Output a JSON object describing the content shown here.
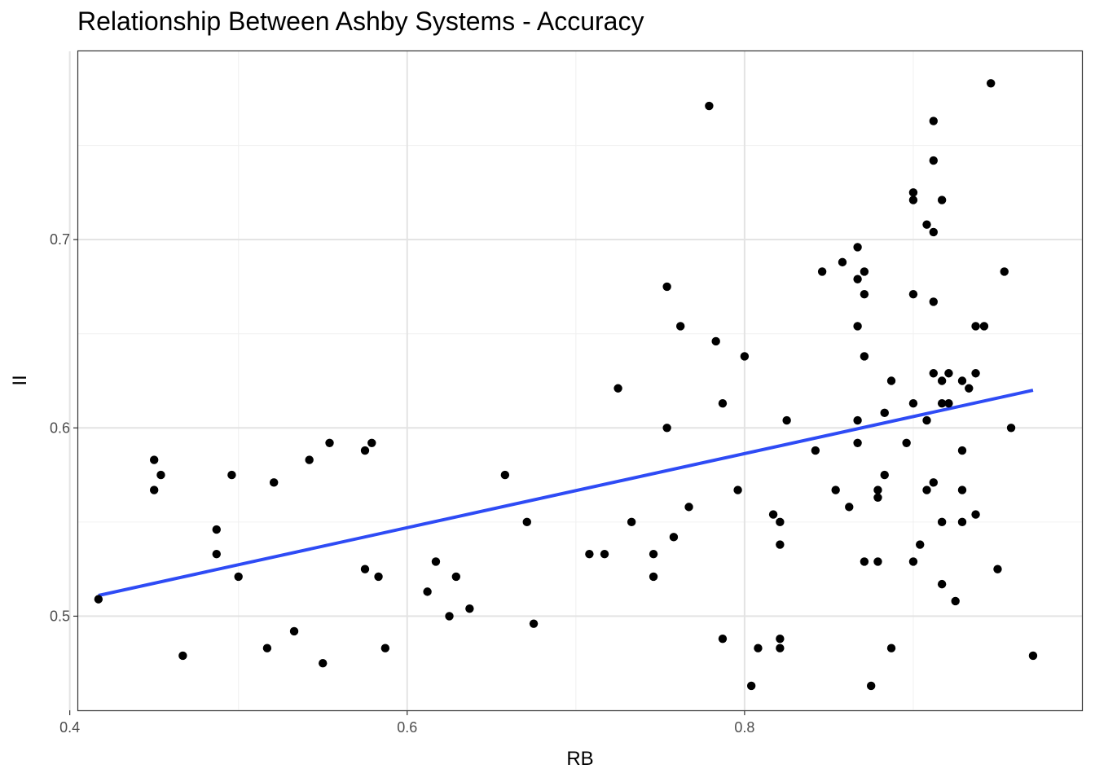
{
  "chart_data": {
    "type": "scatter",
    "title": "Relationship Between Ashby Systems - Accuracy",
    "xlabel": "RB",
    "ylabel": "II",
    "xlim": [
      0.405,
      1.0
    ],
    "ylim": [
      0.45,
      0.8
    ],
    "x_ticks": [
      0.4,
      0.6,
      0.8
    ],
    "x_tick_labels": [
      "0.4",
      "0.6",
      "0.8"
    ],
    "y_ticks": [
      0.5,
      0.6,
      0.7
    ],
    "y_tick_labels": [
      "0.5",
      "0.6",
      "0.7"
    ],
    "grid": true,
    "point_color": "#000000",
    "line_color": "#2E4BF5",
    "fit_line": {
      "x": [
        0.417,
        0.971
      ],
      "y": [
        0.511,
        0.62
      ]
    },
    "points": [
      [
        0.417,
        0.509
      ],
      [
        0.45,
        0.583
      ],
      [
        0.45,
        0.567
      ],
      [
        0.454,
        0.575
      ],
      [
        0.467,
        0.479
      ],
      [
        0.487,
        0.546
      ],
      [
        0.487,
        0.533
      ],
      [
        0.496,
        0.575
      ],
      [
        0.5,
        0.521
      ],
      [
        0.517,
        0.483
      ],
      [
        0.521,
        0.571
      ],
      [
        0.533,
        0.492
      ],
      [
        0.542,
        0.583
      ],
      [
        0.55,
        0.475
      ],
      [
        0.554,
        0.592
      ],
      [
        0.575,
        0.588
      ],
      [
        0.575,
        0.525
      ],
      [
        0.579,
        0.592
      ],
      [
        0.583,
        0.521
      ],
      [
        0.587,
        0.483
      ],
      [
        0.612,
        0.513
      ],
      [
        0.617,
        0.529
      ],
      [
        0.625,
        0.5
      ],
      [
        0.629,
        0.521
      ],
      [
        0.637,
        0.504
      ],
      [
        0.658,
        0.575
      ],
      [
        0.671,
        0.55
      ],
      [
        0.675,
        0.496
      ],
      [
        0.708,
        0.533
      ],
      [
        0.717,
        0.533
      ],
      [
        0.725,
        0.621
      ],
      [
        0.733,
        0.55
      ],
      [
        0.746,
        0.533
      ],
      [
        0.746,
        0.521
      ],
      [
        0.754,
        0.675
      ],
      [
        0.754,
        0.6
      ],
      [
        0.758,
        0.542
      ],
      [
        0.762,
        0.654
      ],
      [
        0.767,
        0.558
      ],
      [
        0.779,
        0.771
      ],
      [
        0.783,
        0.646
      ],
      [
        0.787,
        0.613
      ],
      [
        0.787,
        0.488
      ],
      [
        0.796,
        0.567
      ],
      [
        0.8,
        0.638
      ],
      [
        0.804,
        0.463
      ],
      [
        0.808,
        0.483
      ],
      [
        0.817,
        0.554
      ],
      [
        0.821,
        0.55
      ],
      [
        0.821,
        0.538
      ],
      [
        0.821,
        0.488
      ],
      [
        0.821,
        0.483
      ],
      [
        0.825,
        0.604
      ],
      [
        0.842,
        0.588
      ],
      [
        0.846,
        0.683
      ],
      [
        0.854,
        0.567
      ],
      [
        0.858,
        0.688
      ],
      [
        0.862,
        0.558
      ],
      [
        0.867,
        0.696
      ],
      [
        0.867,
        0.679
      ],
      [
        0.867,
        0.654
      ],
      [
        0.867,
        0.604
      ],
      [
        0.867,
        0.592
      ],
      [
        0.871,
        0.683
      ],
      [
        0.871,
        0.671
      ],
      [
        0.871,
        0.638
      ],
      [
        0.871,
        0.529
      ],
      [
        0.875,
        0.463
      ],
      [
        0.879,
        0.567
      ],
      [
        0.879,
        0.563
      ],
      [
        0.879,
        0.529
      ],
      [
        0.883,
        0.608
      ],
      [
        0.883,
        0.575
      ],
      [
        0.887,
        0.625
      ],
      [
        0.887,
        0.483
      ],
      [
        0.896,
        0.592
      ],
      [
        0.9,
        0.725
      ],
      [
        0.9,
        0.721
      ],
      [
        0.9,
        0.671
      ],
      [
        0.9,
        0.613
      ],
      [
        0.9,
        0.529
      ],
      [
        0.904,
        0.538
      ],
      [
        0.908,
        0.708
      ],
      [
        0.908,
        0.604
      ],
      [
        0.908,
        0.567
      ],
      [
        0.912,
        0.763
      ],
      [
        0.912,
        0.742
      ],
      [
        0.912,
        0.704
      ],
      [
        0.912,
        0.667
      ],
      [
        0.912,
        0.629
      ],
      [
        0.912,
        0.571
      ],
      [
        0.917,
        0.721
      ],
      [
        0.917,
        0.625
      ],
      [
        0.917,
        0.613
      ],
      [
        0.917,
        0.55
      ],
      [
        0.917,
        0.517
      ],
      [
        0.921,
        0.629
      ],
      [
        0.921,
        0.613
      ],
      [
        0.925,
        0.508
      ],
      [
        0.929,
        0.625
      ],
      [
        0.929,
        0.588
      ],
      [
        0.929,
        0.567
      ],
      [
        0.929,
        0.55
      ],
      [
        0.933,
        0.621
      ],
      [
        0.937,
        0.654
      ],
      [
        0.937,
        0.629
      ],
      [
        0.937,
        0.554
      ],
      [
        0.942,
        0.654
      ],
      [
        0.946,
        0.783
      ],
      [
        0.95,
        0.525
      ],
      [
        0.954,
        0.683
      ],
      [
        0.958,
        0.6
      ],
      [
        0.971,
        0.479
      ]
    ]
  }
}
